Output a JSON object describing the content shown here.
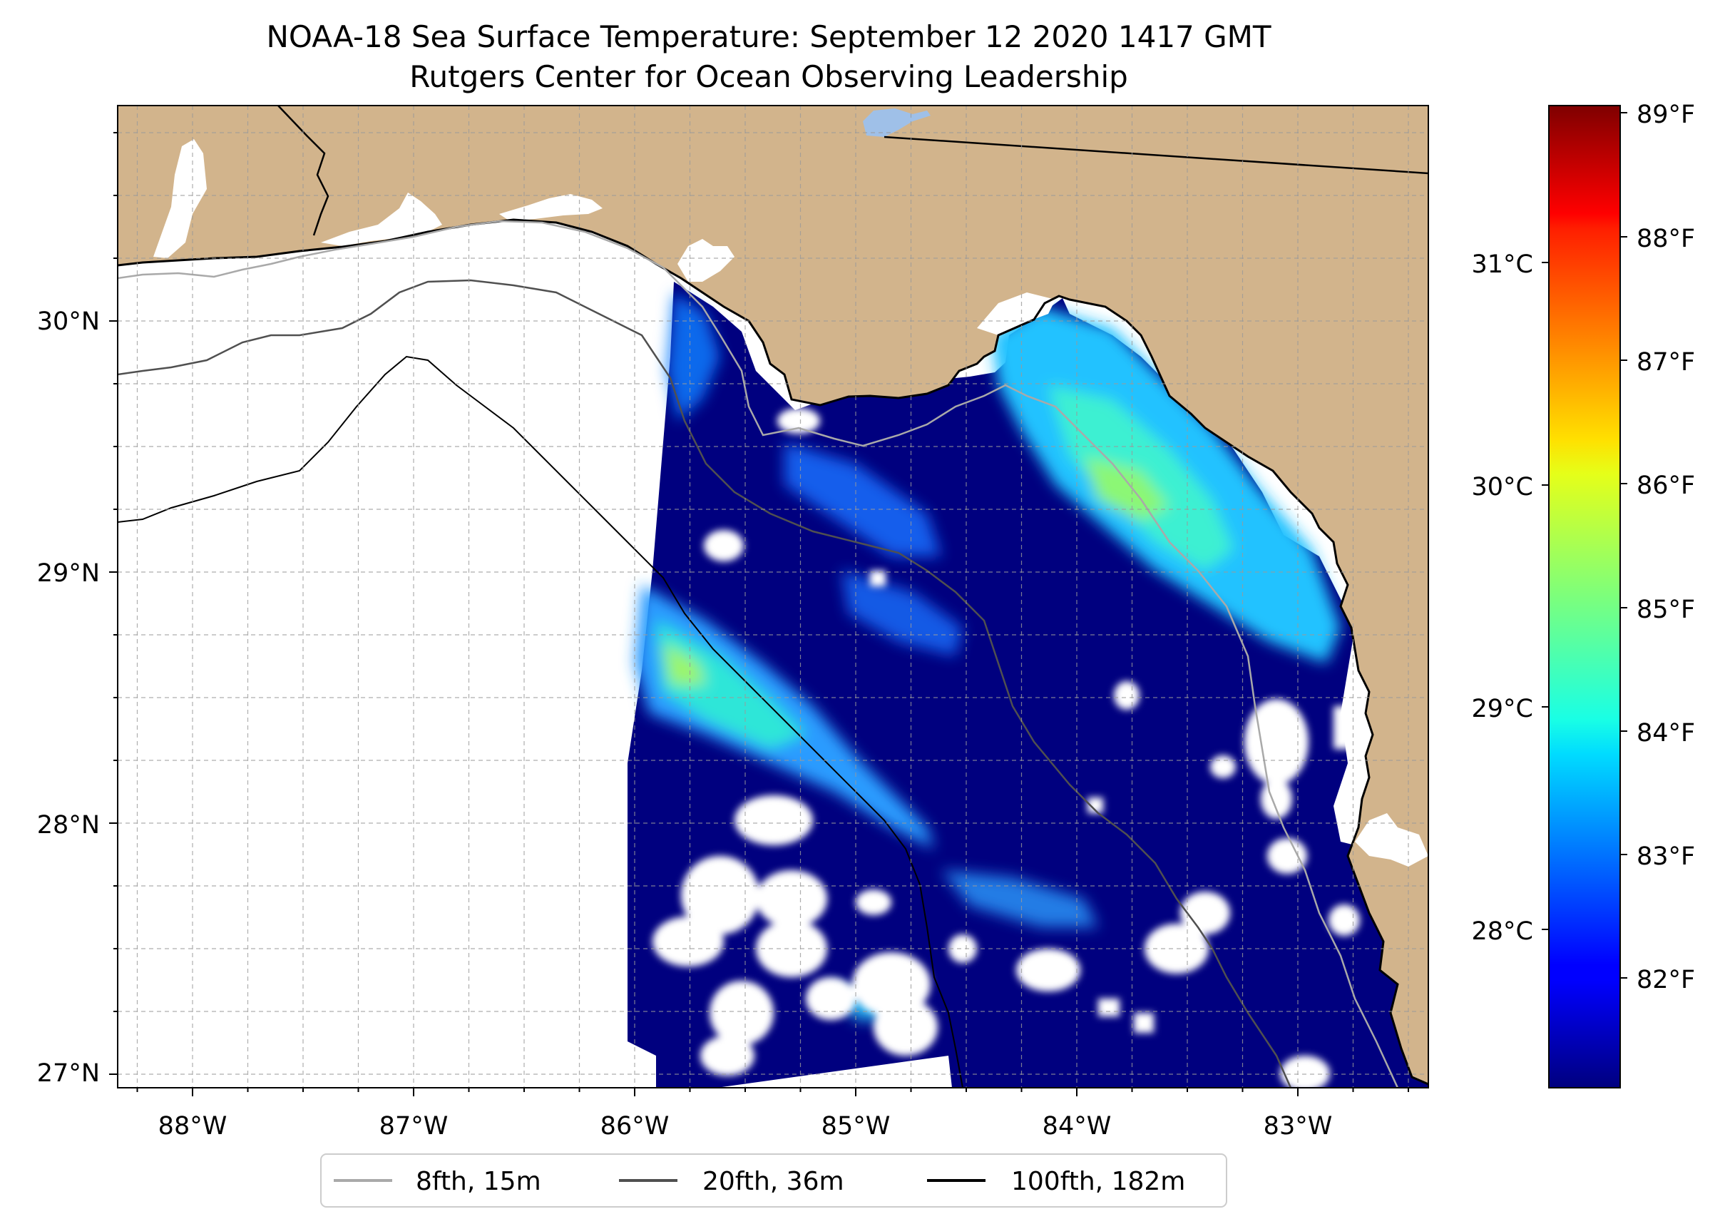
{
  "figure": {
    "title_line1": "NOAA-18 Sea Surface Temperature: September 12 2020 1417 GMT",
    "title_line2": "Rutgers Center for Ocean Observing Leadership"
  },
  "map": {
    "lon_ticks": [
      "88°W",
      "87°W",
      "86°W",
      "85°W",
      "84°W",
      "83°W"
    ],
    "lat_ticks": [
      "30°N",
      "29°N",
      "28°N",
      "27°N"
    ],
    "colors": {
      "land": "#d2b48c",
      "ocean_nodata": "#ffffff",
      "coastline": "#000000",
      "lake": "#9fc0e8"
    }
  },
  "colorbar": {
    "celsius_ticks": [
      "31°C",
      "30°C",
      "29°C",
      "28°C"
    ],
    "fahrenheit_ticks": [
      "89°F",
      "88°F",
      "87°F",
      "86°F",
      "85°F",
      "84°F",
      "83°F",
      "82°F"
    ],
    "colormap": "jet",
    "range_celsius": [
      27.3,
      31.7
    ]
  },
  "legend": {
    "items": [
      {
        "label": "8fth, 15m",
        "color": "#a9a9a9"
      },
      {
        "label": "20fth, 36m",
        "color": "#505050"
      },
      {
        "label": "100fth, 182m",
        "color": "#000000"
      }
    ]
  }
}
